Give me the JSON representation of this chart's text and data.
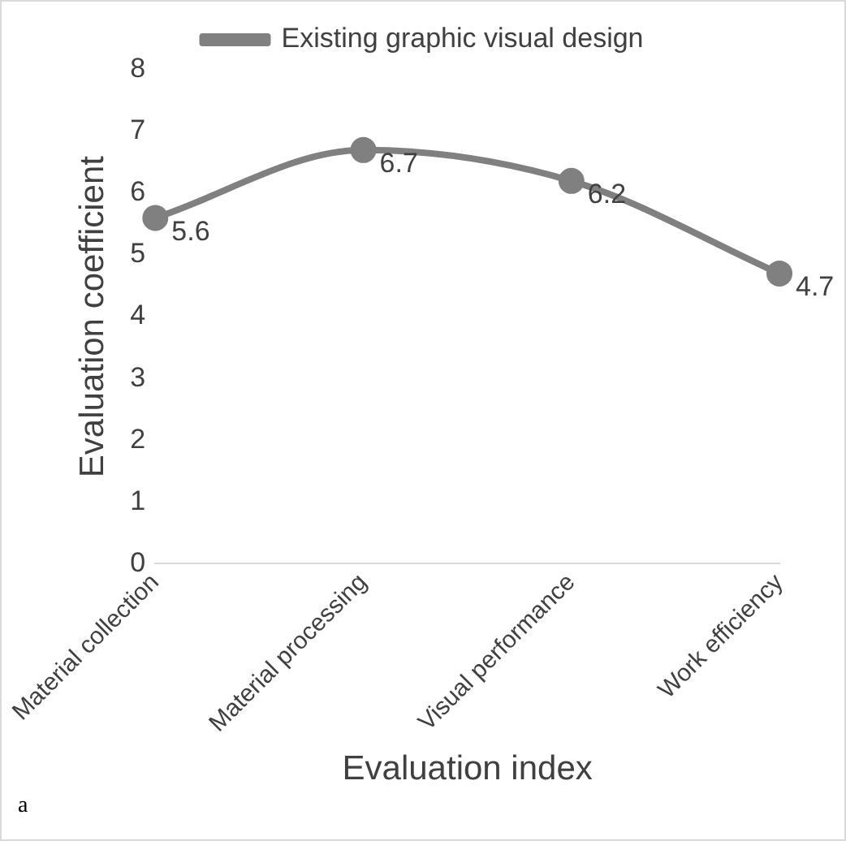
{
  "chart_data": {
    "type": "line",
    "xlabel": "Evaluation index",
    "ylabel": "Evaluation coefficient",
    "categories": [
      "Material collection",
      "Material processing",
      "Visual performance",
      "Work efficiency"
    ],
    "series": [
      {
        "name": "Existing graphic visual design",
        "color": "#808080",
        "values": [
          5.6,
          6.7,
          6.2,
          4.7
        ]
      }
    ],
    "ylim": [
      0,
      8
    ],
    "yticks": [
      0,
      1,
      2,
      3,
      4,
      5,
      6,
      7,
      8
    ],
    "grid": false,
    "legend": "top",
    "marker": "circle",
    "line_style": "solid",
    "data_labels": true,
    "annotations": [
      "a"
    ]
  }
}
